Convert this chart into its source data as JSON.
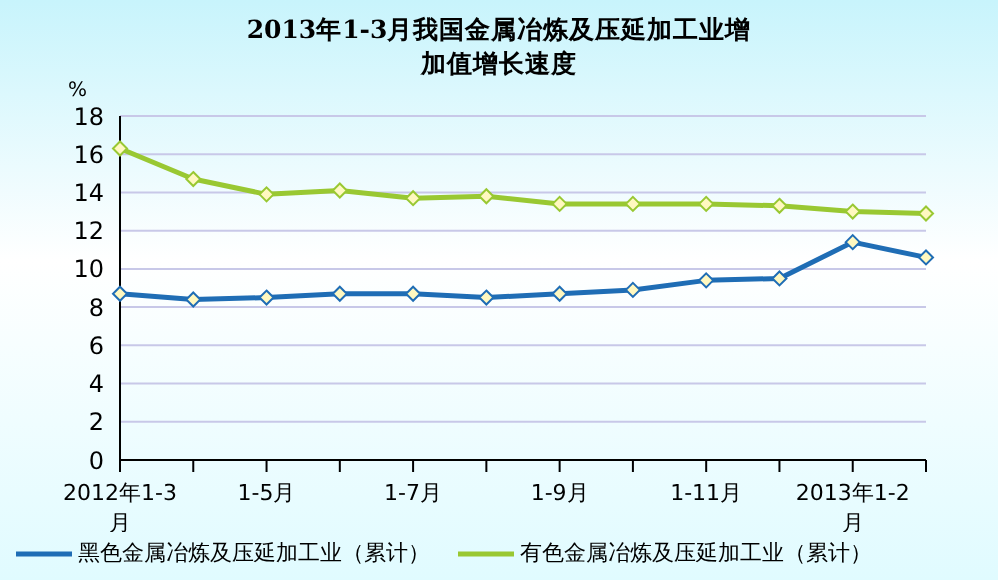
{
  "chart_data": {
    "type": "line",
    "title": "2013年1-3月我国金属冶炼及压延加工业增加值增长速度",
    "ylabel": "%",
    "categories": [
      "2012年1-3月",
      null,
      "1-5月",
      null,
      "1-7月",
      null,
      "1-9月",
      null,
      "1-11月",
      null,
      "2013年1-2月",
      null
    ],
    "series": [
      {
        "name": "黑色金属冶炼及压延加工业（累计）",
        "color": "#1f6db5",
        "values": [
          8.7,
          8.4,
          8.5,
          8.7,
          8.7,
          8.5,
          8.7,
          8.9,
          9.4,
          9.5,
          11.4,
          10.6
        ]
      },
      {
        "name": "有色金属冶炼及压延加工业（累计）",
        "color": "#99c832",
        "values": [
          16.3,
          14.7,
          13.9,
          14.1,
          13.7,
          13.8,
          13.4,
          13.4,
          13.4,
          13.3,
          13.0,
          12.9
        ]
      }
    ],
    "ylim": [
      0,
      18
    ],
    "yticks": [
      0,
      2,
      4,
      6,
      8,
      10,
      12,
      14,
      16,
      18
    ],
    "grid": "y",
    "legend": "bottom",
    "marker": "diamond",
    "line_style": "solid"
  }
}
